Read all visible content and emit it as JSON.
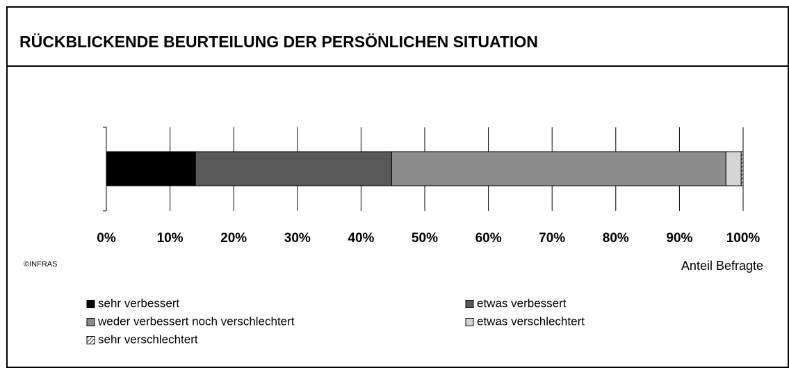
{
  "chart_data": {
    "type": "stacked_barh",
    "title": "RÜCKBLICKENDE BEURTEILUNG DER PERSÖNLICHEN SITUATION",
    "xlabel": "Anteil Befragte",
    "annotation": "©INFRAS",
    "xlim": [
      0,
      100
    ],
    "xticks": [
      {
        "value": 0,
        "label": "0%"
      },
      {
        "value": 10,
        "label": "10%"
      },
      {
        "value": 20,
        "label": "20%"
      },
      {
        "value": 30,
        "label": "30%"
      },
      {
        "value": 40,
        "label": "40%"
      },
      {
        "value": 50,
        "label": "50%"
      },
      {
        "value": 60,
        "label": "60%"
      },
      {
        "value": 70,
        "label": "70%"
      },
      {
        "value": 80,
        "label": "80%"
      },
      {
        "value": 90,
        "label": "90%"
      },
      {
        "value": 100,
        "label": "100%"
      }
    ],
    "grid": true,
    "series": [
      {
        "name": "sehr verbessert",
        "color": "#000000",
        "values": [
          14
        ]
      },
      {
        "name": "etwas verbessert",
        "color": "#595959",
        "values": [
          30.8
        ]
      },
      {
        "name": "weder verbessert noch verschlechtert",
        "color": "#8c8c8c",
        "values": [
          52.5
        ]
      },
      {
        "name": "etwas verschlechtert",
        "color": "#d4d4d4",
        "values": [
          2.4
        ]
      },
      {
        "name": "sehr verschlechtert",
        "color": "#ffffff",
        "hatch": true,
        "values": [
          0.3
        ]
      }
    ]
  }
}
